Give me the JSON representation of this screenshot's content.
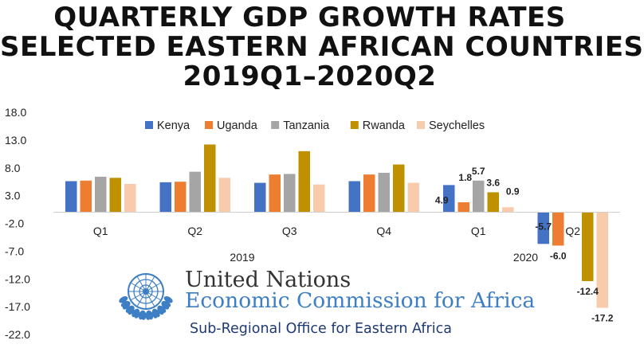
{
  "title_lines": [
    "QUARTERLY GDP GROWTH RATES",
    "SELECTED EASTERN AFRICAN COUNTRIES",
    "2019Q1–2020Q2"
  ],
  "chart_data": {
    "type": "bar",
    "title": "QUARTERLY GDP GROWTH RATES SELECTED EASTERN AFRICAN COUNTRIES 2019Q1–2020Q2",
    "categories": [
      "Q1",
      "Q2",
      "Q3",
      "Q4",
      "Q1",
      "Q2"
    ],
    "years": [
      {
        "label": "2019",
        "span": [
          0,
          3
        ]
      },
      {
        "label": "2020",
        "span": [
          4,
          5
        ]
      }
    ],
    "series": [
      {
        "name": "Kenya",
        "color": "#4472C4",
        "values": [
          5.6,
          5.4,
          5.3,
          5.6,
          4.9,
          -5.7
        ]
      },
      {
        "name": "Uganda",
        "color": "#ED7D31",
        "values": [
          5.7,
          5.5,
          6.8,
          6.8,
          1.8,
          -6.0
        ]
      },
      {
        "name": "Tanzania",
        "color": "#A5A5A5",
        "values": [
          6.4,
          7.3,
          6.9,
          7.1,
          5.7,
          null
        ]
      },
      {
        "name": "Rwanda",
        "color": "#BF9000",
        "values": [
          6.2,
          12.2,
          11.0,
          8.6,
          3.6,
          -12.4
        ]
      },
      {
        "name": "Seychelles",
        "color": "#F8CBAD",
        "values": [
          5.1,
          6.2,
          5.0,
          5.3,
          0.9,
          -17.2
        ]
      }
    ],
    "data_labels": [
      {
        "series": 0,
        "index": 4,
        "text": "4.9"
      },
      {
        "series": 1,
        "index": 4,
        "text": "1.8"
      },
      {
        "series": 2,
        "index": 4,
        "text": "5.7"
      },
      {
        "series": 3,
        "index": 4,
        "text": "3.6"
      },
      {
        "series": 4,
        "index": 4,
        "text": "0.9"
      },
      {
        "series": 0,
        "index": 5,
        "text": "-5.7"
      },
      {
        "series": 1,
        "index": 5,
        "text": "-6.0"
      },
      {
        "series": 3,
        "index": 5,
        "text": "-12.4"
      },
      {
        "series": 4,
        "index": 5,
        "text": "-17.2"
      }
    ],
    "yticks": [
      18.0,
      13.0,
      8.0,
      3.0,
      -2.0,
      -7.0,
      -12.0,
      -17.0,
      -22.0
    ],
    "ytick_labels": [
      "18.0",
      "13.0",
      "8.0",
      "3.0",
      "-2.0",
      "-7.0",
      "-12.0",
      "-17.0",
      "-22.0"
    ],
    "ylim": [
      -22,
      18
    ],
    "grid": false,
    "legend_position": "top"
  },
  "logo": {
    "line1": "United Nations",
    "line2": "Economic Commission for Africa",
    "line3": "Sub-Regional Office for Eastern Africa",
    "colors": {
      "un_blue": "#3d7ec4",
      "dark": "#333333",
      "navy": "#1f3a73"
    },
    "icon": "un-emblem-icon"
  }
}
